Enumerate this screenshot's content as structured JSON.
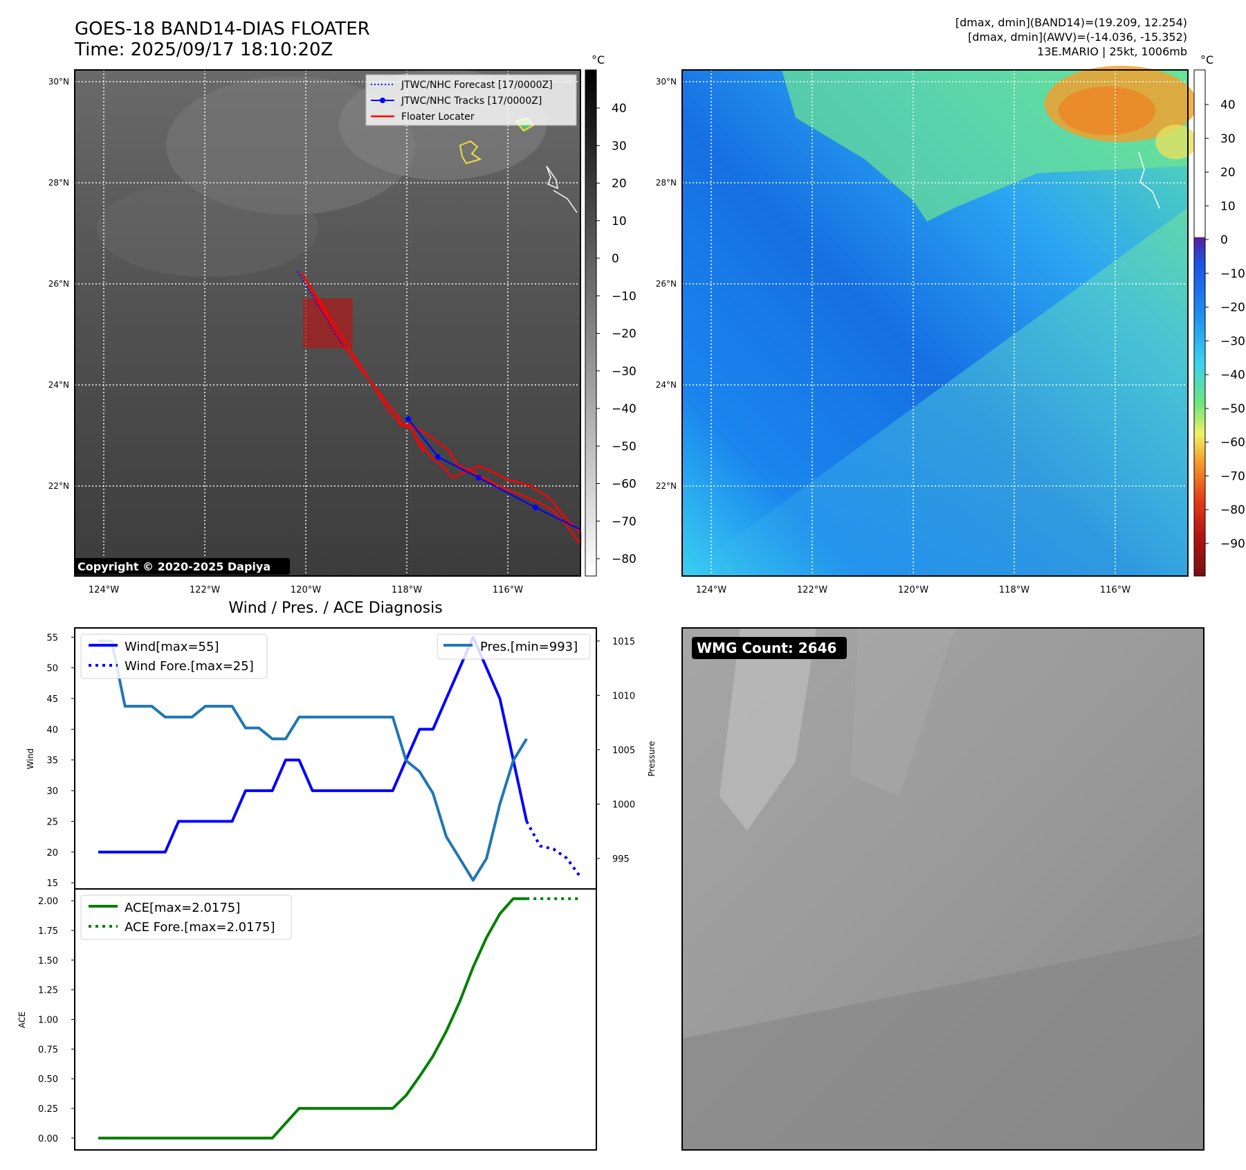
{
  "header": {
    "title_line1": "GOES-18 BAND14-DIAS FLOATER",
    "title_line2": "Time: 2025/09/17 18:10:20Z",
    "info_line1": "[dmax, dmin](BAND14)=(19.209, 12.254)",
    "info_line2": "[dmax, dmin](AWV)=(-14.036, -15.352)",
    "info_line3": "13E.MARIO | 25kt, 1006mb"
  },
  "map_axes": {
    "lat_labels": [
      "30°N",
      "28°N",
      "26°N",
      "24°N",
      "22°N"
    ],
    "lon_labels": [
      "124°W",
      "122°W",
      "120°W",
      "118°W",
      "116°W"
    ]
  },
  "ir_panel": {
    "legend": [
      "JTWC/NHC Forecast [17/0000Z]",
      "JTWC/NHC Tracks [17/0000Z]",
      "Floater Locater"
    ],
    "colors": {
      "forecast": "#0000ff",
      "track": "#0000ff",
      "floater": "#ff0000"
    },
    "copyright": "Copyright © 2020-2025 Dapiya",
    "colorbar_unit": "°C",
    "colorbar_ticks": [
      "40",
      "30",
      "20",
      "10",
      "0",
      "−10",
      "−20",
      "−30",
      "−40",
      "−50",
      "−60",
      "−70",
      "−80"
    ]
  },
  "wv_panel": {
    "colorbar_unit": "°C",
    "colorbar_ticks": [
      "40",
      "30",
      "20",
      "10",
      "0",
      "−10",
      "−20",
      "−30",
      "−40",
      "−50",
      "−60",
      "−70",
      "−80",
      "−90"
    ]
  },
  "wmg_panel": {
    "badge": "WMG Count: 2646"
  },
  "chart_data": [
    {
      "type": "line",
      "title": "Wind / Pres. / ACE Diagnosis",
      "ylabel": "Wind",
      "y2label": "Pressure",
      "ylim": [
        14,
        56.5
      ],
      "y2lim": [
        992.2,
        1016.2
      ],
      "yticks": [
        "55",
        "50",
        "45",
        "40",
        "35",
        "30",
        "25",
        "20",
        "15"
      ],
      "y2ticks": [
        "1015",
        "1010",
        "1005",
        "1000",
        "995"
      ],
      "x": [
        0,
        1,
        2,
        3,
        4,
        5,
        6,
        7,
        8,
        9,
        10,
        11,
        12,
        13,
        14,
        15,
        16,
        17,
        18,
        19,
        20,
        21,
        22,
        23,
        24,
        25,
        26,
        27,
        28,
        29,
        30,
        31,
        32,
        33,
        34,
        35,
        36,
        37,
        38
      ],
      "series": [
        {
          "name": "Wind[max=55]",
          "color": "#0000ff",
          "style": "solid",
          "x": [
            0,
            1,
            2,
            3,
            4,
            5,
            6,
            7,
            8,
            9,
            10,
            11,
            12,
            13,
            14,
            15,
            16,
            17,
            18,
            19,
            20,
            21,
            22,
            23,
            24,
            25,
            26,
            27,
            28,
            29,
            30,
            31,
            32
          ],
          "values": [
            20,
            20,
            20,
            20,
            20,
            20,
            25,
            25,
            25,
            25,
            25,
            30,
            30,
            30,
            35,
            35,
            30,
            30,
            30,
            30,
            30,
            30,
            30,
            35,
            40,
            40,
            45,
            50,
            55,
            50,
            45,
            35,
            25
          ]
        },
        {
          "name": "Wind Fore.[max=25]",
          "color": "#0000ff",
          "style": "dotted",
          "x": [
            32,
            33,
            34,
            35,
            36
          ],
          "values": [
            25,
            21,
            20.5,
            19,
            16
          ]
        },
        {
          "name": "Pres.[min=993]",
          "color": "#1f77b4",
          "style": "solid",
          "axis": "right",
          "x": [
            0,
            1,
            2,
            3,
            4,
            5,
            6,
            7,
            8,
            9,
            10,
            11,
            12,
            13,
            14,
            15,
            16,
            17,
            18,
            19,
            20,
            21,
            22,
            23,
            24,
            25,
            26,
            27,
            28,
            29,
            30,
            31,
            32
          ],
          "values": [
            1015,
            1015,
            1009,
            1009,
            1009,
            1008,
            1008,
            1008,
            1009,
            1009,
            1009,
            1007,
            1007,
            1006,
            1006,
            1008,
            1008,
            1008,
            1008,
            1008,
            1008,
            1008,
            1008,
            1004,
            1003,
            1001,
            997,
            995,
            993,
            995,
            1000,
            1004,
            1006
          ]
        }
      ]
    },
    {
      "type": "line",
      "ylabel": "ACE",
      "ylim": [
        -0.1,
        2.1
      ],
      "yticks": [
        "2.00",
        "1.75",
        "1.50",
        "1.25",
        "1.00",
        "0.75",
        "0.50",
        "0.25",
        "0.00"
      ],
      "series": [
        {
          "name": "ACE[max=2.0175]",
          "color": "#008000",
          "style": "solid",
          "x": [
            0,
            1,
            2,
            3,
            4,
            5,
            6,
            7,
            8,
            9,
            10,
            11,
            12,
            13,
            14,
            15,
            16,
            17,
            18,
            19,
            20,
            21,
            22,
            23,
            24,
            25,
            26,
            27,
            28,
            29,
            30,
            31,
            32
          ],
          "values": [
            0,
            0,
            0,
            0,
            0,
            0,
            0,
            0,
            0,
            0,
            0,
            0,
            0,
            0,
            0.125,
            0.25,
            0.25,
            0.25,
            0.25,
            0.25,
            0.25,
            0.25,
            0.25,
            0.36,
            0.52,
            0.69,
            0.9,
            1.15,
            1.44,
            1.69,
            1.89,
            2.0175,
            2.0175
          ]
        },
        {
          "name": "ACE Fore.[max=2.0175]",
          "color": "#008000",
          "style": "dotted",
          "x": [
            32,
            33,
            34,
            35,
            36
          ],
          "values": [
            2.0175,
            2.0175,
            2.0175,
            2.0175,
            2.0175
          ]
        }
      ]
    }
  ]
}
